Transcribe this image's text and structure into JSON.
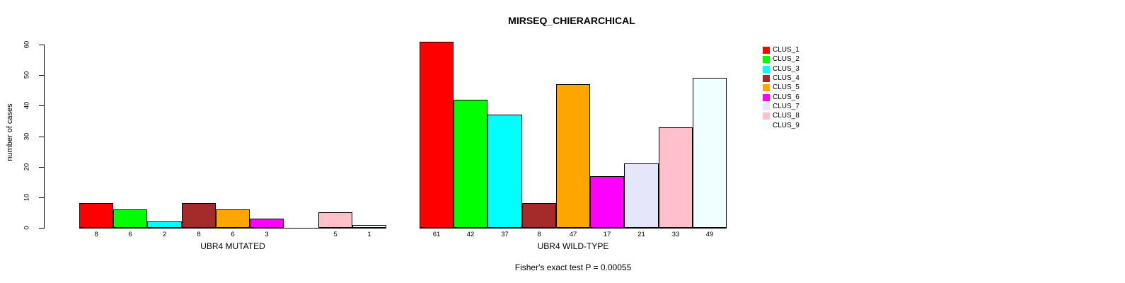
{
  "chart_data": {
    "type": "bar",
    "title": "MIRSEQ_CHIERARCHICAL",
    "ylabel": "number of cases",
    "ylim": [
      0,
      60
    ],
    "yticks": [
      0,
      10,
      20,
      30,
      40,
      50,
      60
    ],
    "grid": false,
    "legend_position": "right",
    "legend": [
      "CLUS_1",
      "CLUS_2",
      "CLUS_3",
      "CLUS_4",
      "CLUS_5",
      "CLUS_6",
      "CLUS_7",
      "CLUS_8",
      "CLUS_9"
    ],
    "colors": [
      "#FF0000",
      "#00FF00",
      "#00FFFF",
      "#A52A2A",
      "#FFA500",
      "#FF00FF",
      "#E6E6FA",
      "#FFC0CB",
      "#F0FFFF"
    ],
    "groups": [
      {
        "label": "UBR4 MUTATED",
        "values": [
          8,
          6,
          2,
          8,
          6,
          3,
          0,
          5,
          1
        ]
      },
      {
        "label": "UBR4 WILD-TYPE",
        "values": [
          61,
          42,
          37,
          8,
          47,
          17,
          21,
          33,
          49
        ]
      }
    ],
    "footnote": "Fisher's exact test P = 0.00055"
  }
}
